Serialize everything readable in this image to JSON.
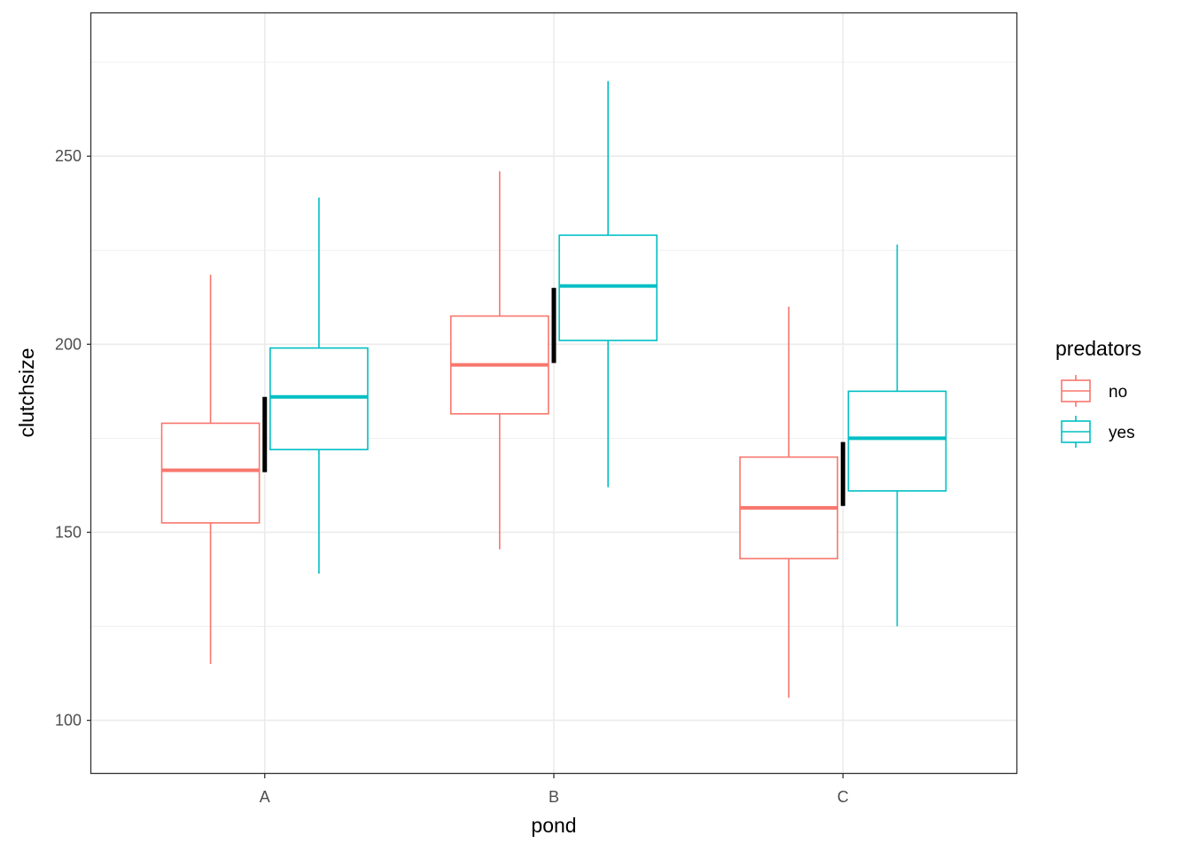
{
  "chart_data": {
    "type": "boxplot",
    "xlabel": "pond",
    "ylabel": "clutchsize",
    "categories": [
      "A",
      "B",
      "C"
    ],
    "ylim": [
      86,
      288
    ],
    "yticks": [
      100,
      150,
      200,
      250
    ],
    "grid": true,
    "legend": {
      "title": "predators",
      "position": "right"
    },
    "series": [
      {
        "name": "no",
        "color": "#F8766D",
        "boxes": [
          {
            "category": "A",
            "min": 115,
            "q1": 152.5,
            "median": 166.5,
            "q3": 179,
            "max": 218.5
          },
          {
            "category": "B",
            "min": 145.5,
            "q1": 181.5,
            "median": 194.5,
            "q3": 207.5,
            "max": 246
          },
          {
            "category": "C",
            "min": 106,
            "q1": 143,
            "median": 156.5,
            "q3": 170,
            "max": 210
          }
        ]
      },
      {
        "name": "yes",
        "color": "#00BFC4",
        "boxes": [
          {
            "category": "A",
            "min": 139,
            "q1": 172,
            "median": 186,
            "q3": 199,
            "max": 239
          },
          {
            "category": "B",
            "min": 162,
            "q1": 201,
            "median": 215.5,
            "q3": 229,
            "max": 270
          },
          {
            "category": "C",
            "min": 125,
            "q1": 161,
            "median": 175,
            "q3": 187.5,
            "max": 226.5
          }
        ]
      }
    ],
    "difference_bars": [
      {
        "category": "A",
        "from": 166,
        "to": 186
      },
      {
        "category": "B",
        "from": 195,
        "to": 215
      },
      {
        "category": "C",
        "from": 157,
        "to": 174
      }
    ]
  }
}
